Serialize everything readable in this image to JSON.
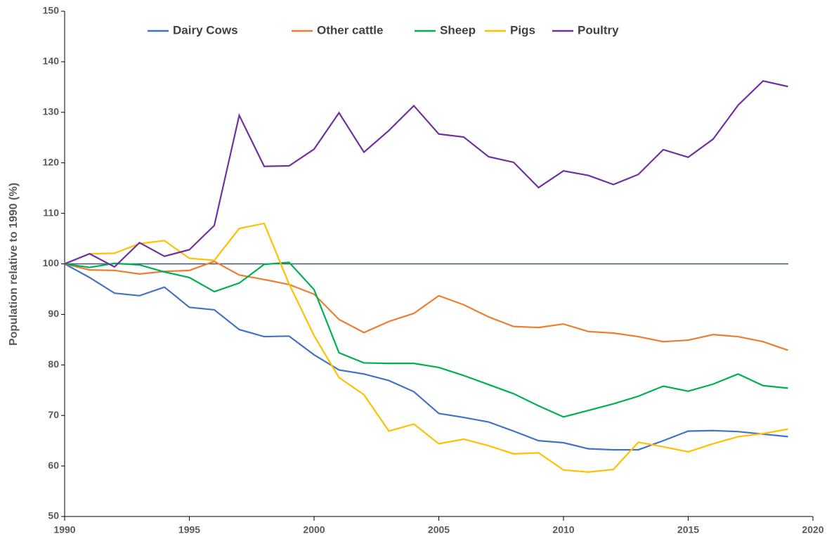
{
  "chart_data": {
    "type": "line",
    "y_label": "Population relative to 1990 (%)",
    "x": [
      1990,
      1991,
      1992,
      1993,
      1994,
      1995,
      1996,
      1997,
      1998,
      1999,
      2000,
      2001,
      2002,
      2003,
      2004,
      2005,
      2006,
      2007,
      2008,
      2009,
      2010,
      2011,
      2012,
      2013,
      2014,
      2015,
      2016,
      2017,
      2018,
      2019
    ],
    "series": [
      {
        "name": "Dairy Cows",
        "color": "#4472c4",
        "values": [
          100,
          97.3,
          94.2,
          93.7,
          95.4,
          91.4,
          90.9,
          87.0,
          85.6,
          85.7,
          82.0,
          79.0,
          78.2,
          76.9,
          74.7,
          70.4,
          69.6,
          68.7,
          66.9,
          65.0,
          64.6,
          63.4,
          63.2,
          63.2,
          65.0,
          66.9,
          67.0,
          66.8,
          66.3,
          65.8
        ]
      },
      {
        "name": "Other cattle",
        "color": "#ed7d31",
        "values": [
          100,
          98.8,
          98.7,
          98.0,
          98.5,
          98.7,
          100.5,
          97.8,
          96.9,
          95.9,
          94.0,
          89.0,
          86.4,
          88.6,
          90.2,
          93.7,
          91.9,
          89.5,
          87.6,
          87.4,
          88.1,
          86.6,
          86.3,
          85.6,
          84.6,
          84.9,
          86.0,
          85.6,
          84.6,
          82.9
        ]
      },
      {
        "name": "Sheep",
        "color": "#00b050",
        "values": [
          100,
          99.3,
          100.1,
          99.8,
          98.4,
          97.3,
          94.5,
          96.2,
          99.9,
          100.3,
          94.9,
          82.4,
          80.4,
          80.3,
          80.3,
          79.5,
          77.9,
          76.1,
          74.3,
          71.9,
          69.7,
          71.0,
          72.3,
          73.8,
          75.8,
          74.8,
          76.2,
          78.2,
          75.9,
          75.4
        ]
      },
      {
        "name": "Pigs",
        "color": "#ffc000",
        "values": [
          100,
          102.0,
          102.1,
          104.0,
          104.6,
          101.1,
          100.7,
          107.0,
          108.0,
          96.0,
          85.8,
          77.5,
          74.1,
          66.9,
          68.3,
          64.4,
          65.3,
          64.0,
          62.4,
          62.6,
          59.2,
          58.8,
          59.3,
          64.7,
          63.8,
          62.8,
          64.4,
          65.8,
          66.4,
          67.3
        ]
      },
      {
        "name": "Poultry",
        "color": "#7030a0",
        "values": [
          100,
          102.0,
          99.4,
          104.2,
          101.5,
          102.8,
          107.6,
          129.4,
          119.3,
          119.4,
          122.7,
          129.9,
          122.1,
          126.4,
          131.3,
          125.7,
          125.1,
          121.2,
          120.1,
          115.1,
          118.4,
          117.5,
          115.7,
          117.7,
          122.6,
          121.1,
          124.7,
          131.4,
          136.2,
          135.1
        ]
      }
    ],
    "reference_line": 100,
    "reference_color": "#44546a",
    "xlim": [
      1990,
      2020
    ],
    "xticks": [
      1990,
      1995,
      2000,
      2005,
      2010,
      2015,
      2020
    ],
    "ylim": [
      50,
      150
    ],
    "yticks": [
      50,
      60,
      70,
      80,
      90,
      100,
      110,
      120,
      130,
      140,
      150
    ],
    "legend": "top"
  }
}
